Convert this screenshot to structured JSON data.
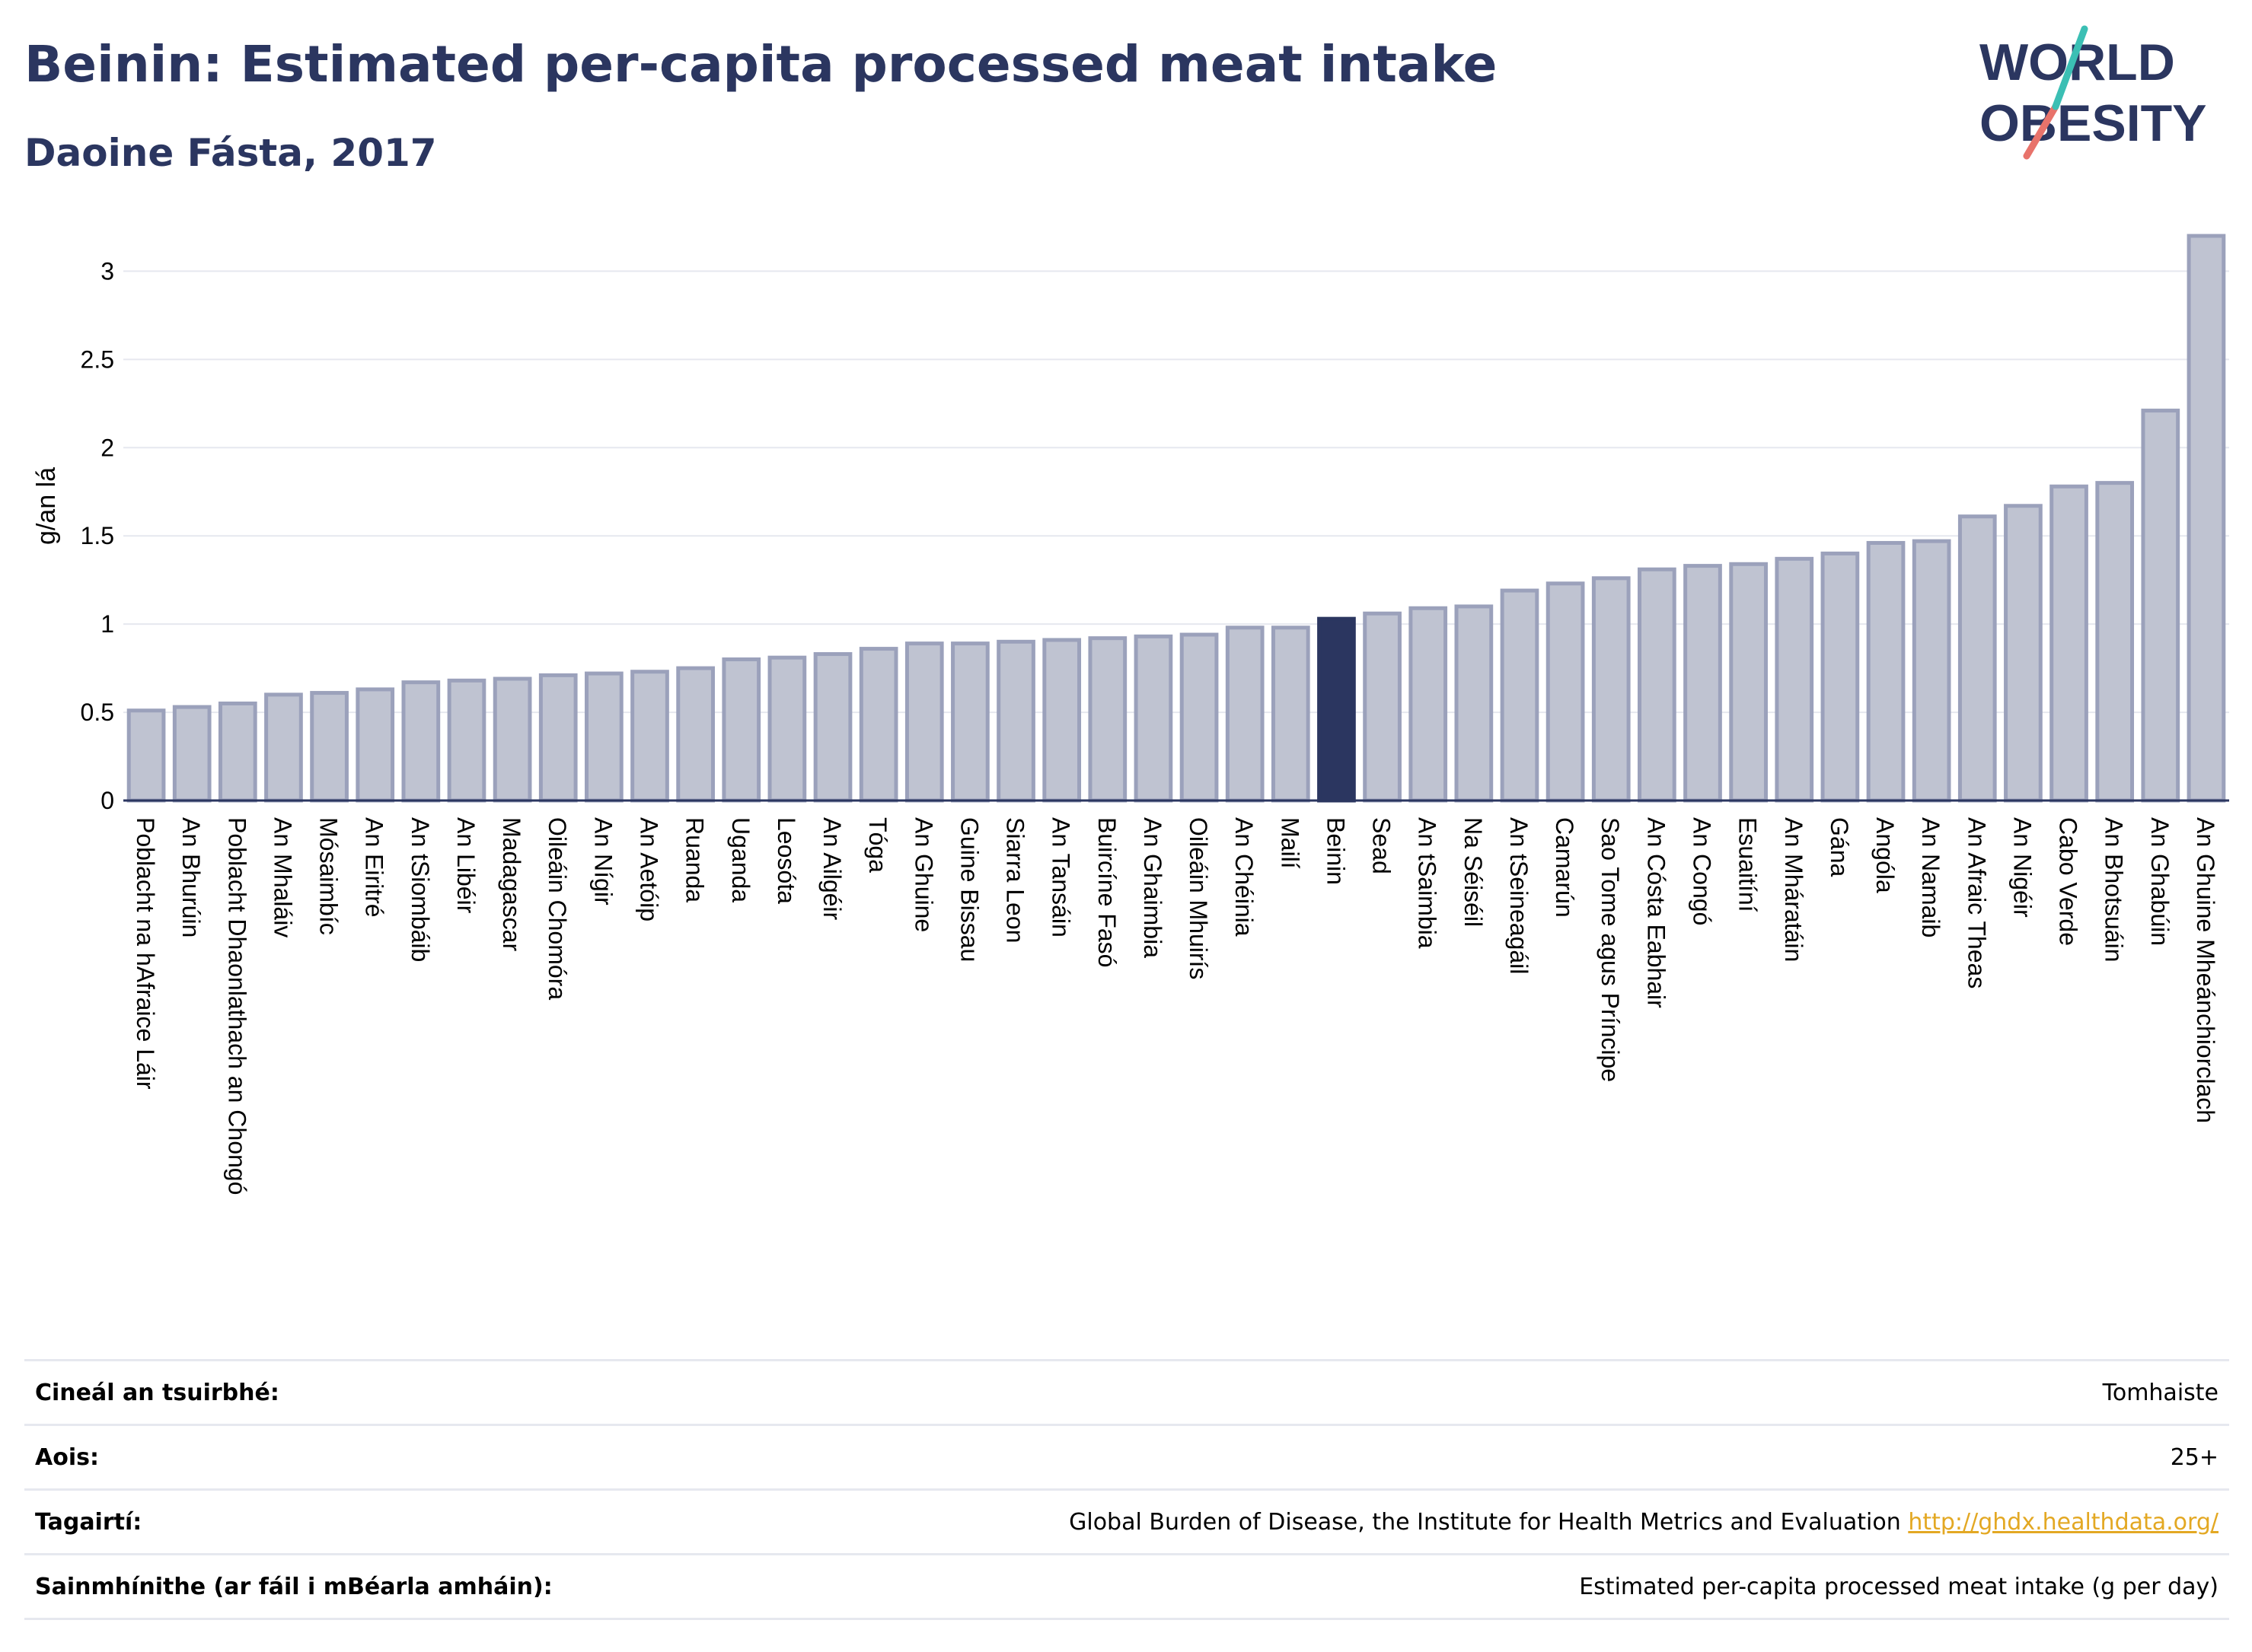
{
  "header": {
    "title": "Beinin: Estimated per-capita processed meat intake",
    "subtitle": "Daoine Fásta, 2017"
  },
  "logo": {
    "line1": "WORLD",
    "line2": "OBESITY"
  },
  "colors": {
    "bar": "#bfc3d1",
    "bar_stroke": "#9ba1bb",
    "highlight": "#2b3660",
    "title": "#2b3660",
    "link": "#e3a823"
  },
  "chart_data": {
    "type": "bar",
    "ylabel": "g/an lá",
    "ylim": [
      0,
      3.3
    ],
    "yticks": [
      "0",
      "0.5",
      "1",
      "1.5",
      "2",
      "2.5",
      "3"
    ],
    "grid": true,
    "highlight": "Beinin",
    "categories": [
      "Poblacht na hAfraice Láir",
      "An Bhurúin",
      "Poblacht Dhaonlathach an Chongó",
      "An Mhaláiv",
      "Mósaimbíc",
      "An Eiritré",
      "An tSiombáib",
      "An Libéir",
      "Madagascar",
      "Oileáin Chomóra",
      "An Nígir",
      "An Aetóip",
      "Ruanda",
      "Uganda",
      "Leosóta",
      "An Ailgéir",
      "Tóga",
      "An Ghuine",
      "Guine Bissau",
      "Siarra Leon",
      "An Tansáin",
      "Buircíne Fasó",
      "An Ghaimbia",
      "Oileáin Mhuirís",
      "An Chéinia",
      "Mailí",
      "Beinin",
      "Sead",
      "An tSaimbia",
      "Na Séiséil",
      "An tSeineagáil",
      "Camarún",
      "Sao Tome agus Príncipe",
      "An Cósta Eabhair",
      "An Congó",
      "Esuaitíní",
      "An Mháratáin",
      "Gána",
      "Angóla",
      "An Namaib",
      "An Afraic Theas",
      "An Nigéir",
      "Cabo Verde",
      "An Bhotsuáin",
      "An Ghabúin",
      "An Ghuine Mheánchiorclach"
    ],
    "values": [
      0.51,
      0.53,
      0.55,
      0.6,
      0.61,
      0.63,
      0.67,
      0.68,
      0.69,
      0.71,
      0.72,
      0.73,
      0.75,
      0.8,
      0.81,
      0.83,
      0.86,
      0.89,
      0.89,
      0.9,
      0.91,
      0.92,
      0.93,
      0.94,
      0.98,
      0.98,
      1.03,
      1.06,
      1.09,
      1.1,
      1.19,
      1.23,
      1.26,
      1.31,
      1.33,
      1.34,
      1.37,
      1.4,
      1.46,
      1.47,
      1.61,
      1.67,
      1.78,
      1.8,
      2.21,
      3.2
    ]
  },
  "meta": [
    {
      "label": "Cineál an tsuirbhé:",
      "value": "Tomhaiste"
    },
    {
      "label": "Aois:",
      "value": "25+"
    },
    {
      "label": "Tagairtí:",
      "value": "Global Burden of Disease, the Institute for Health Metrics and Evaluation",
      "link": "http://ghdx.healthdata.org/"
    },
    {
      "label": "Sainmhínithe (ar fáil i mBéarla amháin):",
      "value": "Estimated per-capita processed meat intake (g per day)"
    }
  ]
}
